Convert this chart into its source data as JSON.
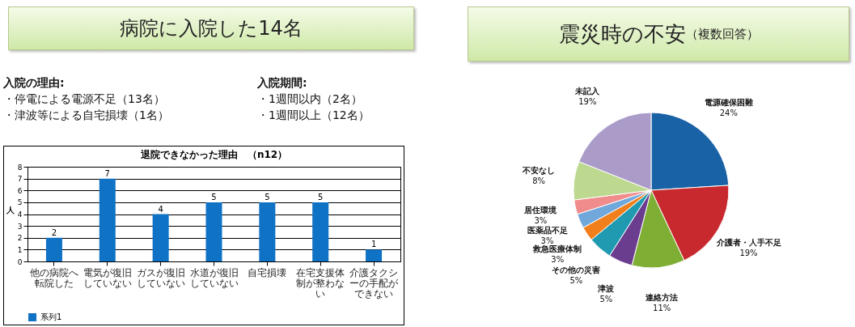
{
  "chart_data": [
    {
      "type": "other",
      "title": "病院に入院した14名",
      "annotations": [
        "入院の理由:",
        "・停電による電源不足（13名）",
        "・津波等による自宅損壊（1名）",
        "入院期間:",
        "・1週間以内（2名）",
        "・1週間以上（12名）"
      ]
    },
    {
      "type": "bar",
      "title": "退院できなかった理由　（n12）",
      "ylabel": "人",
      "categories": [
        "他の病院へ転院した",
        "電気が復旧していない",
        "ガスが復旧していない",
        "水道が復旧していない",
        "自宅損壊",
        "在宅支援体制が整わない",
        "介護タクシーの手配ができない"
      ],
      "series": [
        {
          "name": "系列1",
          "color": "#0f72c4",
          "values": [
            2,
            7,
            4,
            5,
            5,
            5,
            1
          ]
        }
      ],
      "ylim": [
        0,
        8
      ],
      "yticks": [
        0,
        1,
        2,
        3,
        4,
        5,
        6,
        7,
        8
      ],
      "grid": "y",
      "data_labels": true,
      "legend": "bottom"
    },
    {
      "type": "pie",
      "title": "震災時の不安",
      "subtitle": "（複数回答）",
      "categories": [
        "電源確保困難",
        "介護者・人手不足",
        "連絡方法",
        "津波",
        "その他の災害",
        "救急医療体制",
        "医薬品不足",
        "居住環境",
        "不安なし",
        "未記入"
      ],
      "values": [
        24,
        19,
        11,
        5,
        5,
        3,
        3,
        3,
        8,
        19
      ],
      "value_labels": [
        "24%",
        "19%",
        "11%",
        "5%",
        "5%",
        "3%",
        "3%",
        "3%",
        "8%",
        "19%"
      ],
      "colors": [
        "#1a62a6",
        "#c8292e",
        "#7fae34",
        "#6a3d8f",
        "#1f9ab0",
        "#f07f1c",
        "#70a8dc",
        "#f08c8c",
        "#bcd98f",
        "#aa9bc9"
      ]
    }
  ]
}
